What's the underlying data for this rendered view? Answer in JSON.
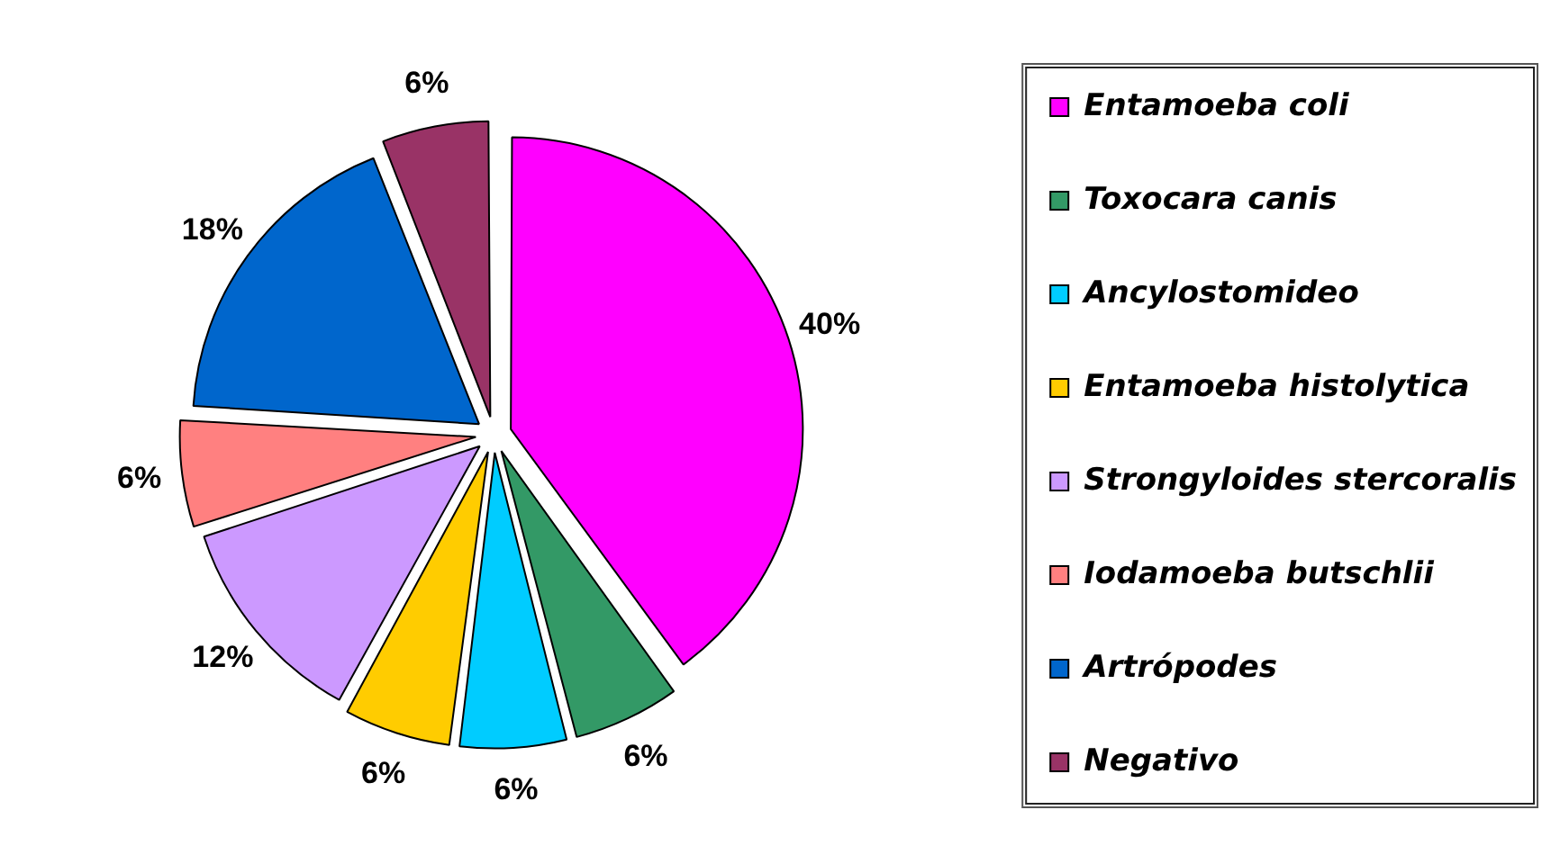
{
  "chart_data": {
    "type": "pie",
    "categories": [
      "Entamoeba coli",
      "Toxocara canis",
      "Ancylostomideo",
      "Entamoeba histolytica",
      "Strongyloides stercoralis",
      "Iodamoeba butschlii",
      "Artrópodes",
      "Negativo"
    ],
    "values": [
      40,
      6,
      6,
      6,
      12,
      6,
      18,
      6
    ],
    "colors": [
      "#ff00ff",
      "#339966",
      "#00ccff",
      "#ffcc00",
      "#cc99ff",
      "#ff8080",
      "#0066cc",
      "#993366"
    ],
    "value_labels": [
      "40%",
      "6%",
      "6%",
      "6%",
      "12%",
      "6%",
      "18%",
      "6%"
    ],
    "legend": "right"
  }
}
